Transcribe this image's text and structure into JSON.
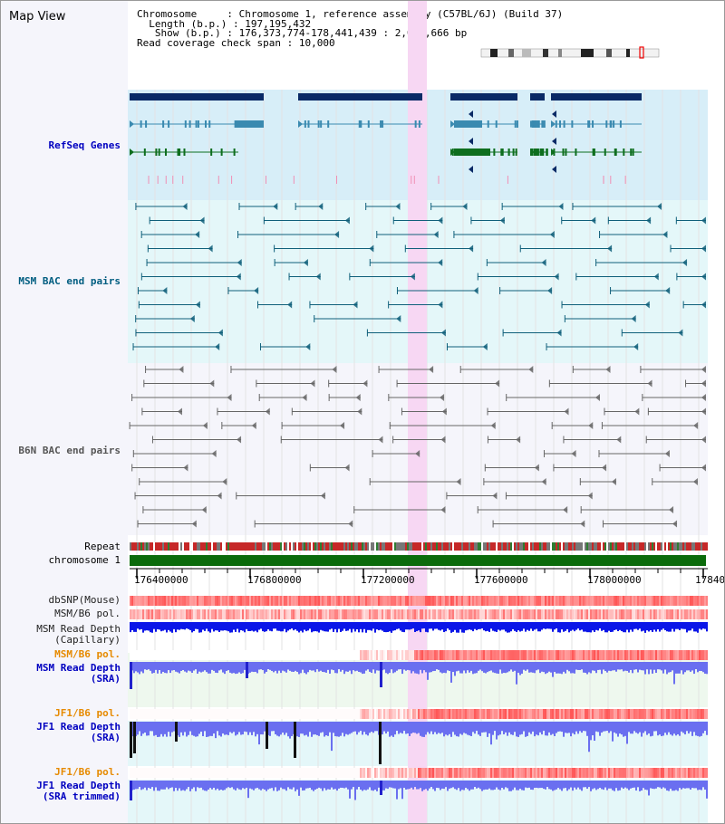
{
  "view_title": "Map View",
  "info": {
    "chromosome_label": "Chromosome",
    "chromosome_value": "Chromosome 1, reference assembly (C57BL/6J) (Build 37)",
    "length_label": "Length (b.p.)",
    "length_value": "197,195,432",
    "show_label": "Show (b.p.)",
    "show_value": "176,373,774-178,441,439 : 2,067,666 bp",
    "coverage_label": "Read coverage check span",
    "coverage_value": "10,000"
  },
  "tracks": {
    "refseq": "RefSeq Genes",
    "msm_bac": "MSM BAC end pairs",
    "b6n_bac": "B6N BAC end pairs",
    "repeat": "Repeat",
    "chromosome": "chromosome 1",
    "dbsnp": "dbSNP(Mouse)",
    "msm_b6_pol": "MSM/B6 pol.",
    "msm_read_cap_1": "MSM Read Depth",
    "msm_read_cap_2": "(Capillary)",
    "msm_b6_pol2": "MSM/B6 pol.",
    "msm_read_sra_1": "MSM Read Depth",
    "msm_read_sra_2": "(SRA)",
    "jf1_pol": "JF1/B6 pol.",
    "jf1_read_1": "JF1 Read Depth",
    "jf1_read_2": "(SRA)",
    "jf1_pol2": "JF1/B6 pol.",
    "jf1_trim_1": "JF1 Read Depth",
    "jf1_trim_2": "(SRA trimmed)"
  },
  "axis": {
    "ticks": [
      "176400000",
      "176800000",
      "177200000",
      "177600000",
      "178000000",
      "17840"
    ]
  },
  "colors": {
    "refseq_bg": "#d7eef8",
    "msm_bg": "#e4f7f9",
    "b6n_bg": "#f5f5fb",
    "highlight": "#f7d7f3",
    "label_blue": "#0000c0",
    "label_teal": "#005d80",
    "label_orange": "#e68a00"
  }
}
